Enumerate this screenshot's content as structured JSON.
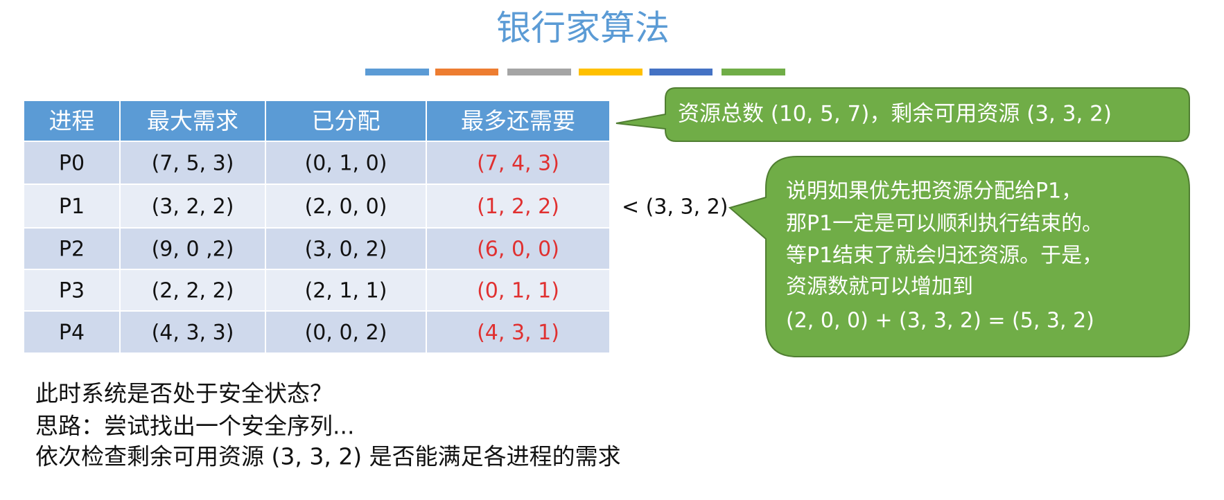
{
  "title": "银行家算法",
  "table": {
    "headers": [
      "进程",
      "最大需求",
      "已分配",
      "最多还需要"
    ],
    "rows": [
      [
        "P0",
        "(7, 5, 3)",
        "(0, 1, 0)",
        "(7, 4, 3)"
      ],
      [
        "P1",
        "(3, 2, 2)",
        "(2, 0, 0)",
        "(1, 2, 2)"
      ],
      [
        "P2",
        "(9, 0 ,2)",
        "(3, 0, 2)",
        "(6, 0, 0)"
      ],
      [
        "P3",
        "(2, 2, 2)",
        "(2, 1, 1)",
        "(0, 1, 1)"
      ],
      [
        "P4",
        "(4, 3, 3)",
        "(0, 0, 2)",
        "(4, 3, 1)"
      ]
    ]
  },
  "callout_total": "资源总数 (10, 5, 7)，剩余可用资源 (3, 3, 2)",
  "comparison": "< (3, 3, 2)",
  "callout_note": {
    "lines": [
      "说明如果优先把资源分配给P1，",
      "那P1一定是可以顺利执行结束的。",
      "等P1结束了就会归还资源。于是，",
      "资源数就可以增加到",
      "(2, 0, 0) + (3, 3, 2) = (5, 3, 2)"
    ]
  },
  "body": {
    "lines": [
      "此时系统是否处于安全状态？",
      "思路：尝试找出一个安全序列...",
      "依次检查剩余可用资源 (3, 3, 2) 是否能满足各进程的需求"
    ]
  }
}
